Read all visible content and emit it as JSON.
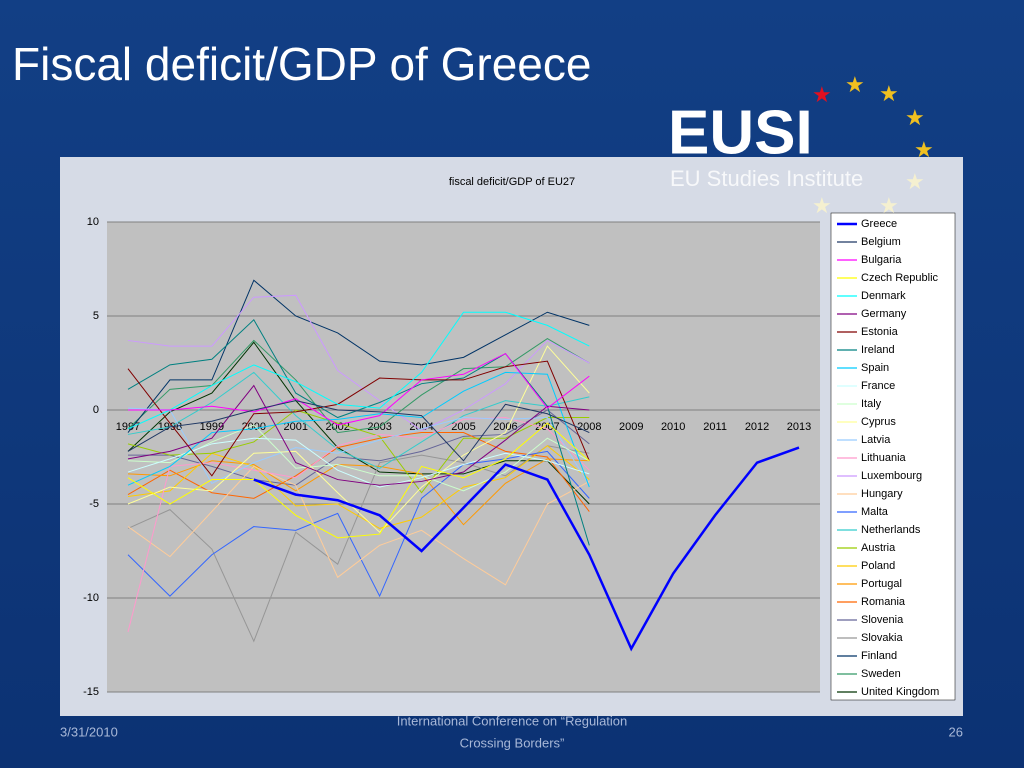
{
  "slide": {
    "title": "Fiscal deficit/GDP of Greece",
    "logo": "EUSI",
    "logo_subtitle": "EU Studies Institute",
    "date": "3/31/2010",
    "footer": [
      "International Conference on “Regulation",
      "Crossing Borders”"
    ],
    "page": "26"
  },
  "chart_data": {
    "type": "line",
    "title": "fiscal deficit/GDP of EU27",
    "categories": [
      "1997",
      "1998",
      "1999",
      "2000",
      "2001",
      "2002",
      "2003",
      "2004",
      "2005",
      "2006",
      "2007",
      "2008",
      "2009",
      "2010",
      "2011",
      "2012",
      "2013"
    ],
    "ylim": [
      -15,
      10
    ],
    "yticks": [
      10,
      5,
      0,
      -5,
      -10,
      -15
    ],
    "grid": true,
    "legend": "right",
    "series": [
      {
        "name": "Greece",
        "color": "#0000ff",
        "values": [
          null,
          null,
          null,
          -3.7,
          -4.5,
          -4.8,
          -5.6,
          -7.5,
          -5.2,
          -2.9,
          -3.7,
          -7.7,
          -12.7,
          -8.7,
          -5.6,
          -2.8,
          -2.0
        ]
      },
      {
        "name": "Belgium",
        "color": "#1f3864",
        "values": [
          -2.2,
          -0.9,
          -0.6,
          0.0,
          0.5,
          0.0,
          -0.1,
          -0.3,
          -2.7,
          0.3,
          -0.2,
          -1.2,
          null,
          null,
          null,
          null,
          null
        ]
      },
      {
        "name": "Bulgaria",
        "color": "#ff00ff",
        "values": [
          0.0,
          0.0,
          0.2,
          -0.1,
          0.6,
          -0.8,
          -0.3,
          1.6,
          1.9,
          3.0,
          0.1,
          1.8,
          null,
          null,
          null,
          null,
          null
        ]
      },
      {
        "name": "Czech Republic",
        "color": "#ffff00",
        "values": [
          -3.6,
          -5.0,
          -3.7,
          -3.7,
          -5.6,
          -6.8,
          -6.6,
          -3.0,
          -3.6,
          -2.6,
          -0.7,
          -2.7,
          null,
          null,
          null,
          null,
          null
        ]
      },
      {
        "name": "Denmark",
        "color": "#00ffff",
        "values": [
          -1.0,
          0.0,
          1.3,
          2.4,
          1.5,
          0.3,
          0.1,
          2.0,
          5.2,
          5.2,
          4.5,
          3.4,
          null,
          null,
          null,
          null,
          null
        ]
      },
      {
        "name": "Germany",
        "color": "#800080",
        "values": [
          -2.6,
          -2.2,
          -1.5,
          1.3,
          -2.8,
          -3.7,
          -4.0,
          -3.8,
          -3.3,
          -1.6,
          0.2,
          0.0,
          null,
          null,
          null,
          null,
          null
        ]
      },
      {
        "name": "Estonia",
        "color": "#800000",
        "values": [
          2.2,
          -0.7,
          -3.5,
          -0.2,
          -0.1,
          0.3,
          1.7,
          1.6,
          1.6,
          2.3,
          2.6,
          -2.7,
          null,
          null,
          null,
          null,
          null
        ]
      },
      {
        "name": "Ireland",
        "color": "#008080",
        "values": [
          1.1,
          2.4,
          2.7,
          4.8,
          0.9,
          -0.4,
          0.4,
          1.4,
          1.7,
          3.0,
          0.2,
          -7.2,
          null,
          null,
          null,
          null,
          null
        ]
      },
      {
        "name": "Spain",
        "color": "#00ccff",
        "values": [
          -4.0,
          -3.0,
          -1.2,
          -1.0,
          -0.6,
          -0.5,
          -0.2,
          -0.4,
          1.0,
          2.0,
          1.9,
          -4.1,
          null,
          null,
          null,
          null,
          null
        ]
      },
      {
        "name": "France",
        "color": "#ccffff",
        "values": [
          -3.3,
          -2.6,
          -1.8,
          -1.5,
          -1.6,
          -3.2,
          -4.1,
          -3.6,
          -2.9,
          -2.3,
          -2.7,
          -3.4,
          null,
          null,
          null,
          null,
          null
        ]
      },
      {
        "name": "Italy",
        "color": "#ccffcc",
        "values": [
          -2.7,
          -2.8,
          -1.7,
          -0.8,
          -3.1,
          -2.9,
          -3.5,
          -3.5,
          -4.3,
          -3.3,
          -1.5,
          -2.7,
          null,
          null,
          null,
          null,
          null
        ]
      },
      {
        "name": "Cyprus",
        "color": "#ffff99",
        "values": [
          -5.0,
          -4.1,
          -4.3,
          -2.3,
          -2.2,
          -4.4,
          -6.5,
          -4.1,
          -2.4,
          -1.2,
          3.4,
          0.9,
          null,
          null,
          null,
          null,
          null
        ]
      },
      {
        "name": "Latvia",
        "color": "#99ccff",
        "values": [
          0.1,
          0.0,
          -3.9,
          -2.8,
          -2.0,
          -2.3,
          -1.6,
          -1.0,
          -0.4,
          -0.5,
          -0.4,
          -4.0,
          null,
          null,
          null,
          null,
          null
        ]
      },
      {
        "name": "Lithuania",
        "color": "#ff99cc",
        "values": [
          -11.8,
          -3.0,
          -2.8,
          -3.2,
          -3.6,
          -1.9,
          -1.3,
          -1.5,
          -0.5,
          -0.4,
          -1.0,
          -3.2,
          null,
          null,
          null,
          null,
          null
        ]
      },
      {
        "name": "Luxembourg",
        "color": "#cc99ff",
        "values": [
          3.7,
          3.4,
          3.4,
          6.0,
          6.1,
          2.1,
          0.5,
          -1.1,
          0.0,
          1.4,
          3.7,
          2.5,
          null,
          null,
          null,
          null,
          null
        ]
      },
      {
        "name": "Hungary",
        "color": "#ffcc99",
        "values": [
          -6.2,
          -7.8,
          -5.4,
          -3.0,
          -4.0,
          -8.9,
          -7.2,
          -6.4,
          -7.9,
          -9.3,
          -5.0,
          -3.8,
          null,
          null,
          null,
          null,
          null
        ]
      },
      {
        "name": "Malta",
        "color": "#3366ff",
        "values": [
          -7.7,
          -9.9,
          -7.7,
          -6.2,
          -6.4,
          -5.5,
          -9.9,
          -4.7,
          -2.9,
          -2.6,
          -2.2,
          -4.7,
          null,
          null,
          null,
          null,
          null
        ]
      },
      {
        "name": "Netherlands",
        "color": "#33cccc",
        "values": [
          -1.3,
          -0.9,
          0.4,
          2.0,
          -0.3,
          -2.1,
          -3.1,
          -1.7,
          -0.3,
          0.5,
          0.2,
          0.7,
          null,
          null,
          null,
          null,
          null
        ]
      },
      {
        "name": "Austria",
        "color": "#99cc00",
        "values": [
          -1.8,
          -2.4,
          -2.3,
          -1.7,
          0.0,
          -0.7,
          -1.4,
          -4.4,
          -1.5,
          -1.5,
          -0.4,
          -0.4,
          null,
          null,
          null,
          null,
          null
        ]
      },
      {
        "name": "Poland",
        "color": "#ffcc00",
        "values": [
          -4.6,
          -4.3,
          -2.3,
          -3.0,
          -5.1,
          -5.0,
          -6.3,
          -5.7,
          -4.1,
          -3.6,
          -1.9,
          -3.7,
          null,
          null,
          null,
          null,
          null
        ]
      },
      {
        "name": "Portugal",
        "color": "#ff9900",
        "values": [
          -3.4,
          -3.5,
          -2.7,
          -2.9,
          -4.3,
          -2.9,
          -3.0,
          -3.4,
          -6.1,
          -3.9,
          -2.6,
          -2.7,
          null,
          null,
          null,
          null,
          null
        ]
      },
      {
        "name": "Romania",
        "color": "#ff6600",
        "values": [
          -4.5,
          -3.2,
          -4.4,
          -4.7,
          -3.5,
          -2.0,
          -1.5,
          -1.2,
          -1.2,
          -2.2,
          -2.5,
          -5.4,
          null,
          null,
          null,
          null,
          null
        ]
      },
      {
        "name": "Slovenia",
        "color": "#666699",
        "values": [
          -2.4,
          -2.4,
          -3.0,
          -3.7,
          -4.0,
          -2.5,
          -2.7,
          -2.2,
          -1.4,
          -1.3,
          0.0,
          -1.8,
          null,
          null,
          null,
          null,
          null
        ]
      },
      {
        "name": "Slovakia",
        "color": "#969696",
        "values": [
          -6.3,
          -5.3,
          -7.4,
          -12.3,
          -6.5,
          -8.2,
          -2.8,
          -2.4,
          -2.8,
          -3.5,
          -1.9,
          -2.3,
          null,
          null,
          null,
          null,
          null
        ]
      },
      {
        "name": "Finland",
        "color": "#003366",
        "values": [
          -1.2,
          1.6,
          1.6,
          6.9,
          5.0,
          4.1,
          2.6,
          2.4,
          2.8,
          4.0,
          5.2,
          4.5,
          null,
          null,
          null,
          null,
          null
        ]
      },
      {
        "name": "Sweden",
        "color": "#339966",
        "values": [
          -1.0,
          1.1,
          1.3,
          3.7,
          1.6,
          -1.2,
          -0.9,
          0.8,
          2.2,
          2.3,
          3.8,
          2.5,
          null,
          null,
          null,
          null,
          null
        ]
      },
      {
        "name": "United Kingdom",
        "color": "#003300",
        "values": [
          -2.2,
          -0.1,
          0.9,
          3.6,
          0.5,
          -2.0,
          -3.3,
          -3.4,
          -3.4,
          -2.7,
          -2.7,
          -5.0,
          null,
          null,
          null,
          null,
          null
        ]
      }
    ]
  }
}
